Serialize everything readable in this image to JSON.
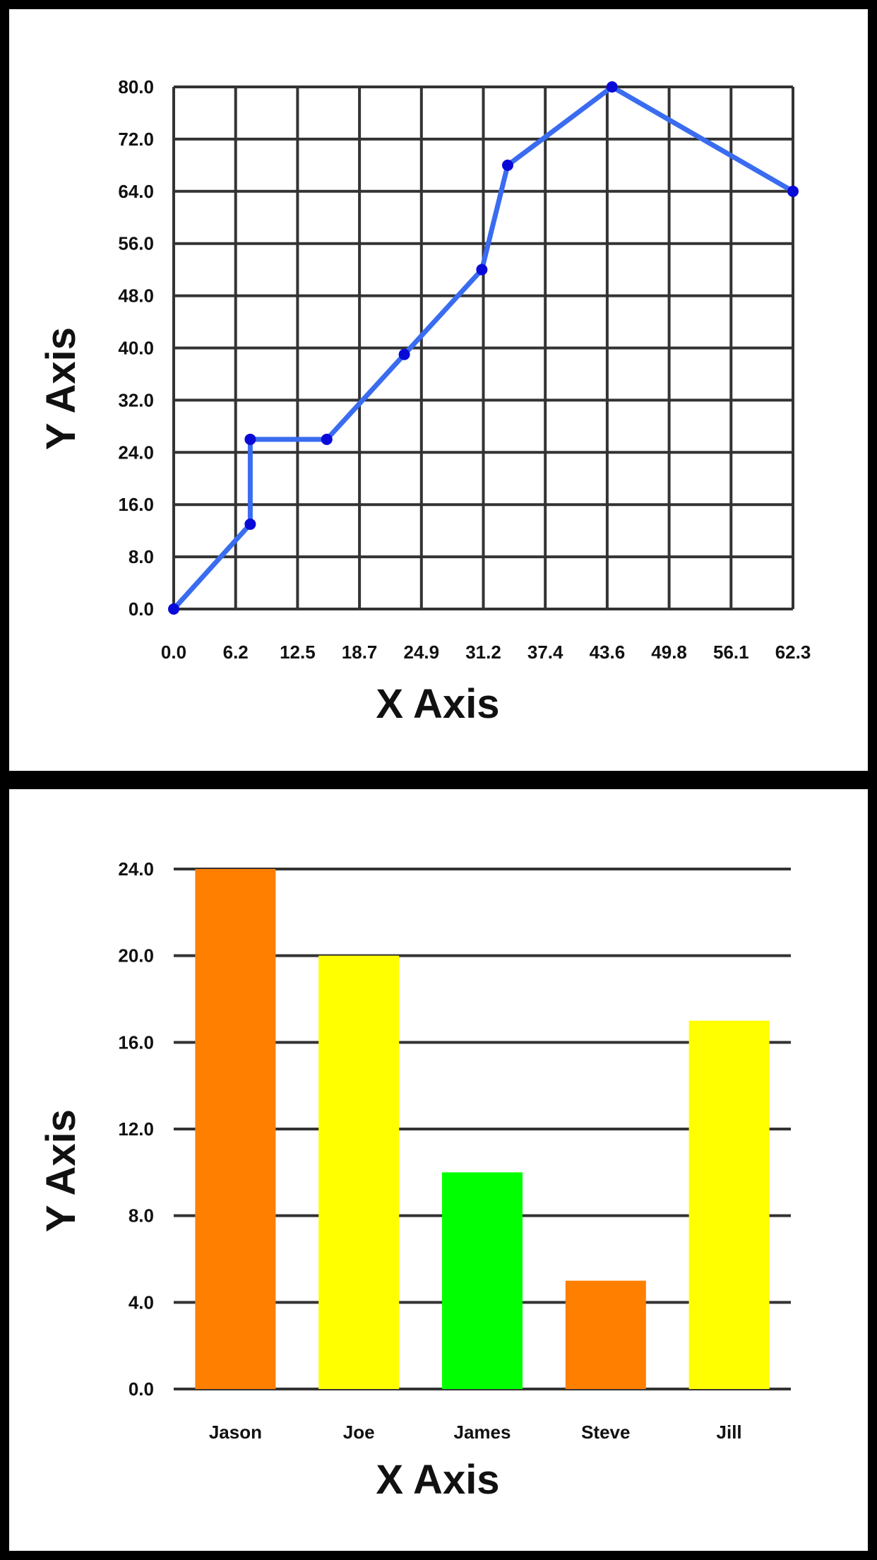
{
  "colors": {
    "line": "#3a6cf0",
    "marker": "#0a0ad8",
    "grid": "#333333",
    "background": "#ffffff",
    "frame": "#000000"
  },
  "chart_data": [
    {
      "type": "line",
      "xlabel": "X Axis",
      "ylabel": "Y Axis",
      "xlim": [
        0,
        62.3
      ],
      "ylim": [
        0,
        80
      ],
      "x_ticks": [
        "0.0",
        "6.2",
        "12.5",
        "18.7",
        "24.9",
        "31.2",
        "37.4",
        "43.6",
        "49.8",
        "56.1",
        "62.3"
      ],
      "y_ticks": [
        "0.0",
        "8.0",
        "16.0",
        "24.0",
        "32.0",
        "40.0",
        "48.0",
        "56.0",
        "64.0",
        "72.0",
        "80.0"
      ],
      "grid": true,
      "series": [
        {
          "x": [
            0.0,
            7.7,
            7.7,
            15.4,
            23.2,
            31.0,
            33.6,
            44.1,
            62.3
          ],
          "y": [
            0.0,
            13.0,
            26.0,
            26.0,
            39.0,
            52.0,
            68.0,
            80.0,
            64.0
          ],
          "color": "#3a6cf0"
        }
      ]
    },
    {
      "type": "bar",
      "xlabel": "X Axis",
      "ylabel": "Y Axis",
      "ylim": [
        0,
        24
      ],
      "y_ticks": [
        "0.0",
        "4.0",
        "8.0",
        "12.0",
        "16.0",
        "20.0",
        "24.0"
      ],
      "grid": true,
      "categories": [
        "Jason",
        "Joe",
        "James",
        "Steve",
        "Jill"
      ],
      "values": [
        24,
        20,
        10,
        5,
        17
      ],
      "colors": [
        "#ff7f00",
        "#ffff00",
        "#00ff00",
        "#ff7f00",
        "#ffff00"
      ]
    }
  ]
}
